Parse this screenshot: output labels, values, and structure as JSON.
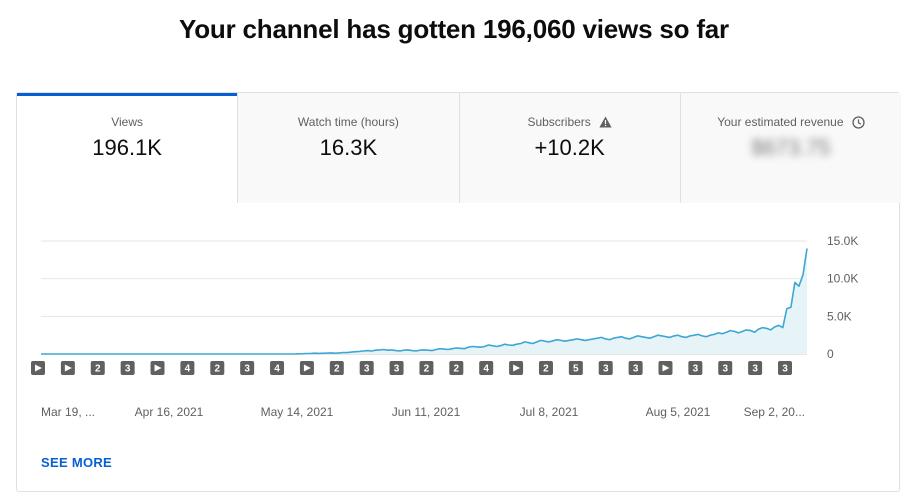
{
  "headline": "Your channel has gotten 196,060 views so far",
  "metrics": [
    {
      "label": "Views",
      "value": "196.1K",
      "active": true
    },
    {
      "label": "Watch time (hours)",
      "value": "16.3K"
    },
    {
      "label": "Subscribers",
      "value": "+10.2K",
      "icon": "warning-icon"
    },
    {
      "label": "Your estimated revenue",
      "value": "$673.75",
      "icon": "clock-icon",
      "blurred": true
    }
  ],
  "see_more": "SEE MORE",
  "colors": {
    "accent": "#065fd4",
    "line": "#3ea6d3",
    "fill": "#e6f4f8",
    "marker": "#606060"
  },
  "chart_data": {
    "type": "area",
    "ylim": [
      0,
      15000
    ],
    "y_ticks": [
      0,
      5000,
      10000,
      15000
    ],
    "y_tick_labels": [
      "0",
      "5.0K",
      "10.0K",
      "15.0K"
    ],
    "x_tick_labels": [
      "Mar 19, ...",
      "Apr 16, 2021",
      "May 14, 2021",
      "Jun 11, 2021",
      "Jul 8, 2021",
      "Aug 5, 2021",
      "Sep 2, 20..."
    ],
    "y": [
      0,
      0,
      0,
      0,
      0,
      0,
      0,
      0,
      0,
      0,
      0,
      0,
      0,
      0,
      0,
      0,
      0,
      0,
      0,
      0,
      0,
      0,
      0,
      0,
      0,
      0,
      0,
      0,
      0,
      0,
      0,
      0,
      0,
      0,
      0,
      0,
      0,
      0,
      0,
      0,
      0,
      0,
      0,
      0,
      0,
      0,
      0,
      0,
      0,
      0,
      0,
      0,
      0,
      0,
      0,
      0,
      0,
      0,
      0,
      0,
      0,
      0,
      0,
      0,
      20,
      40,
      60,
      80,
      100,
      80,
      100,
      120,
      140,
      100,
      150,
      200,
      180,
      250,
      300,
      350,
      400,
      450,
      400,
      500,
      550,
      600,
      500,
      550,
      450,
      400,
      500,
      550,
      450,
      400,
      500,
      550,
      500,
      450,
      600,
      700,
      650,
      600,
      700,
      800,
      750,
      700,
      900,
      1000,
      950,
      900,
      1000,
      1200,
      1100,
      1000,
      1100,
      1300,
      1200,
      1150,
      1300,
      1400,
      1600,
      1500,
      1400,
      1600,
      1800,
      1700,
      1600,
      1750,
      1900,
      1800,
      1700,
      1800,
      1900,
      2000,
      1900,
      1800,
      1900,
      2000,
      2100,
      2200,
      2000,
      1900,
      2100,
      2200,
      2300,
      2100,
      2000,
      2200,
      2400,
      2300,
      2200,
      2100,
      2300,
      2500,
      2400,
      2300,
      2200,
      2400,
      2500,
      2300,
      2200,
      2400,
      2500,
      2600,
      2400,
      2300,
      2500,
      2600,
      2800,
      2700,
      2900,
      3100,
      3000,
      2800,
      3000,
      3200,
      3100,
      2900,
      3300,
      3500,
      3400,
      3200,
      3600,
      3800,
      3500,
      6000,
      6200,
      9500,
      9000,
      10500,
      14000
    ],
    "markers": [
      "play",
      "play",
      "2",
      "3",
      "play",
      "4",
      "2",
      "3",
      "4",
      "play",
      "2",
      "3",
      "3",
      "2",
      "2",
      "4",
      "play",
      "2",
      "5",
      "3",
      "3",
      "play",
      "3",
      "3",
      "3",
      "3"
    ]
  }
}
